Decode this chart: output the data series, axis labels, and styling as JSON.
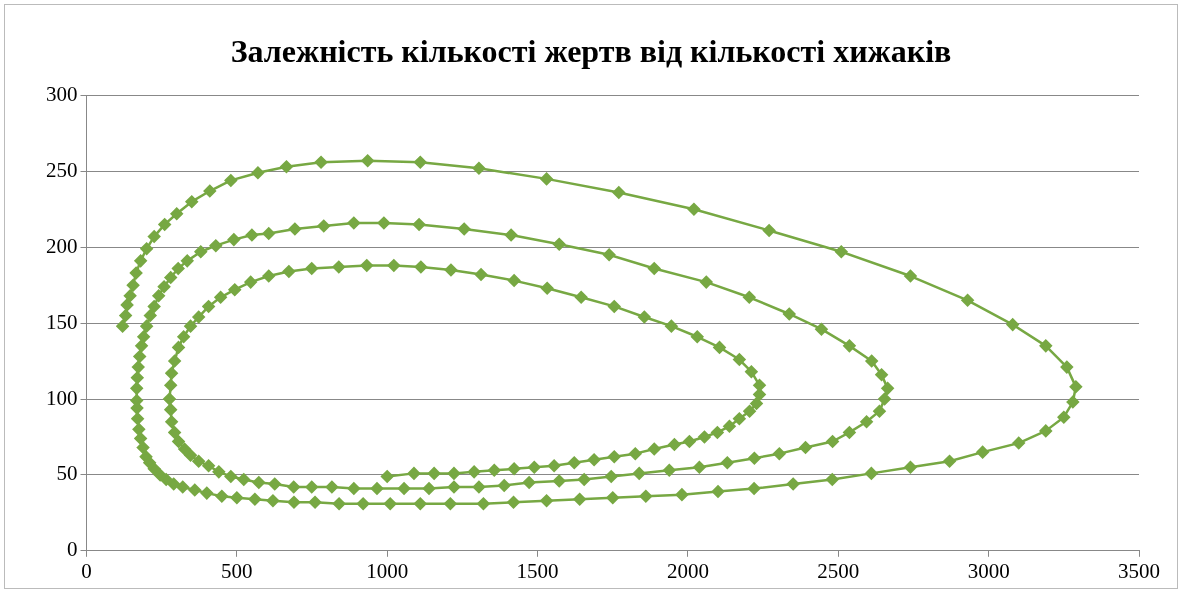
{
  "chart_data": {
    "type": "line",
    "title": "Залежність кількості жертв від кількості хижаків",
    "x": [
      120,
      130,
      135,
      145,
      155,
      165,
      180,
      200,
      225,
      260,
      300,
      350,
      410,
      480,
      570,
      665,
      780,
      935,
      1110,
      1305,
      1530,
      1770,
      2020,
      2270,
      2510,
      2740,
      2930,
      3080,
      3190,
      3260,
      3290,
      3280,
      3250,
      3190,
      3100,
      2980,
      2870,
      2740,
      2610,
      2480,
      2350,
      2220,
      2100,
      1980,
      1860,
      1750,
      1640,
      1530,
      1420,
      1320,
      1210,
      1110,
      1010,
      920,
      840,
      760,
      690,
      620,
      560,
      500,
      450,
      400,
      360,
      320,
      290,
      265,
      245,
      225,
      210,
      198,
      188,
      180,
      174,
      170,
      168,
      167,
      167,
      169,
      172,
      177,
      183,
      190,
      200,
      212,
      225,
      240,
      258,
      280,
      305,
      335,
      380,
      430,
      490,
      550,
      606,
      693,
      789,
      889,
      989,
      1106,
      1256,
      1412,
      1572,
      1738,
      1888,
      2061,
      2204,
      2337,
      2444,
      2537,
      2611,
      2644,
      2664,
      2654,
      2637,
      2594,
      2537,
      2481,
      2391,
      2304,
      2221,
      2131,
      2038,
      1938,
      1838,
      1745,
      1655,
      1572,
      1472,
      1389,
      1305,
      1222,
      1139,
      1056,
      966,
      889,
      816,
      749,
      689,
      626,
      573,
      523,
      480,
      440,
      406,
      373,
      346,
      326,
      306,
      293,
      283,
      280,
      276,
      280,
      283,
      293,
      306,
      323,
      346,
      373,
      406,
      446,
      493,
      546,
      606,
      673,
      749,
      839,
      932,
      1022,
      1112,
      1212,
      1312,
      1422,
      1532,
      1645,
      1755,
      1855,
      1945,
      2031,
      2105,
      2171,
      2211,
      2238,
      2238,
      2228,
      2205,
      2171,
      2138,
      2098,
      2055,
      2005,
      1955,
      1888,
      1825,
      1755,
      1688,
      1622,
      1555,
      1489,
      1422,
      1356,
      1289,
      1222,
      1156,
      1089,
      1000
    ],
    "values": [
      148,
      155,
      162,
      168,
      175,
      183,
      191,
      199,
      207,
      215,
      222,
      230,
      237,
      244,
      249,
      253,
      256,
      257,
      256,
      252,
      245,
      236,
      225,
      211,
      197,
      181,
      165,
      149,
      135,
      121,
      108,
      98,
      88,
      79,
      71,
      65,
      59,
      55,
      51,
      47,
      44,
      41,
      39,
      37,
      36,
      35,
      34,
      33,
      32,
      31,
      31,
      31,
      31,
      31,
      31,
      32,
      32,
      33,
      34,
      35,
      36,
      38,
      40,
      42,
      44,
      47,
      50,
      54,
      58,
      62,
      68,
      74,
      80,
      87,
      94,
      99,
      107,
      114,
      121,
      128,
      135,
      141,
      148,
      155,
      161,
      168,
      174,
      180,
      186,
      191,
      197,
      201,
      205,
      208,
      209,
      212,
      214,
      216,
      216,
      215,
      212,
      208,
      202,
      195,
      186,
      177,
      167,
      156,
      146,
      135,
      125,
      116,
      107,
      100,
      92,
      85,
      78,
      72,
      68,
      64,
      61,
      58,
      55,
      53,
      51,
      49,
      47,
      46,
      45,
      43,
      42,
      42,
      41,
      41,
      41,
      41,
      42,
      42,
      42,
      44,
      45,
      47,
      49,
      52,
      56,
      59,
      63,
      67,
      72,
      78,
      85,
      93,
      100,
      109,
      117,
      125,
      134,
      141,
      148,
      154,
      161,
      167,
      172,
      177,
      181,
      184,
      186,
      187,
      188,
      188,
      187,
      185,
      182,
      178,
      173,
      167,
      161,
      154,
      148,
      141,
      134,
      126,
      118,
      109,
      103,
      97,
      92,
      87,
      82,
      78,
      75,
      72,
      70,
      67,
      64,
      62,
      60,
      58,
      56,
      55,
      54,
      53,
      52,
      51,
      51,
      51,
      49
    ],
    "color": "#77a843",
    "marker": "diamond",
    "xlim": [
      0,
      3500
    ],
    "xticks": [
      0,
      500,
      1000,
      1500,
      2000,
      2500,
      3000,
      3500
    ],
    "ylim": [
      0,
      300
    ],
    "yticks": [
      0,
      50,
      100,
      150,
      200,
      250,
      300
    ],
    "grid": "y"
  }
}
